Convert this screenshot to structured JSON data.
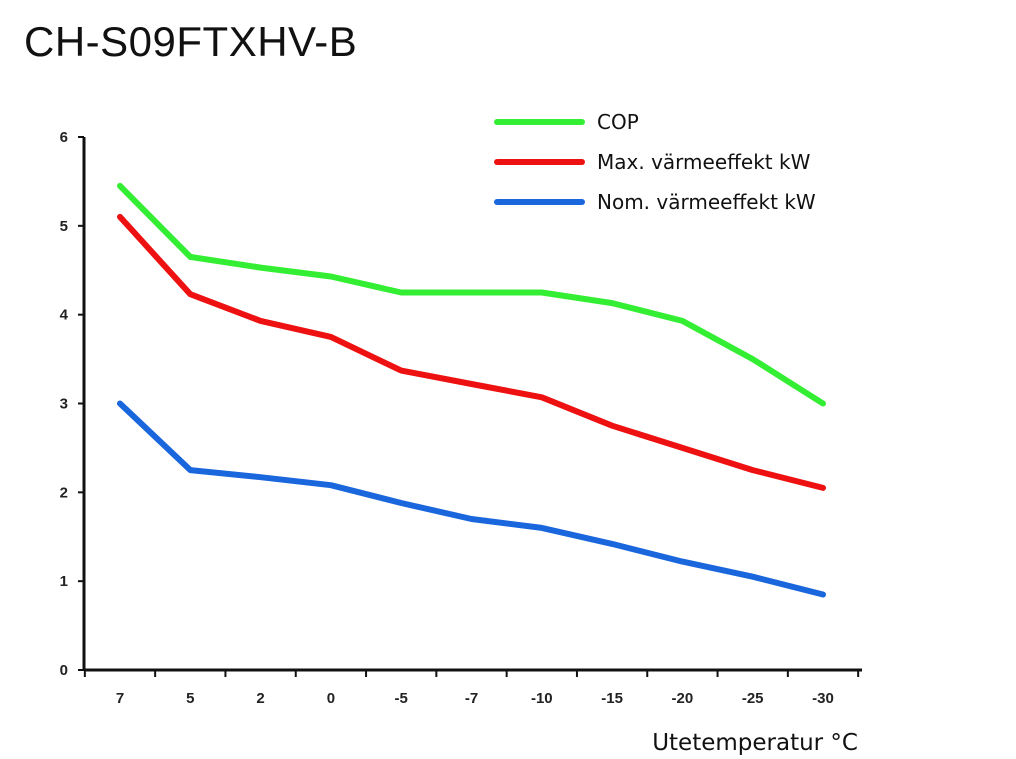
{
  "chart_data": {
    "type": "line",
    "title": "CH-S09FTXHV-B",
    "xlabel": "Utetemperatur °C",
    "ylabel": "",
    "categories": [
      "7",
      "5",
      "2",
      "0",
      "-5",
      "-7",
      "-10",
      "-15",
      "-20",
      "-25",
      "-30"
    ],
    "y_ticks": [
      "0",
      "1",
      "2",
      "3",
      "4",
      "5",
      "6"
    ],
    "ylim": [
      0,
      6
    ],
    "legend_position": "top-right",
    "series": [
      {
        "name": "COP",
        "color": "#33ee33",
        "values": [
          5.45,
          4.65,
          4.53,
          4.43,
          4.25,
          4.25,
          4.25,
          4.13,
          3.93,
          3.5,
          3.0
        ]
      },
      {
        "name": "Max. värmeeffekt kW",
        "color": "#ee1111",
        "values": [
          5.1,
          4.23,
          3.93,
          3.75,
          3.37,
          3.22,
          3.07,
          2.75,
          2.5,
          2.25,
          2.05
        ]
      },
      {
        "name": "Nom. värmeeffekt kW",
        "color": "#1a66dd",
        "values": [
          3.0,
          2.25,
          2.17,
          2.08,
          1.88,
          1.7,
          1.6,
          1.42,
          1.22,
          1.05,
          0.85
        ]
      }
    ]
  }
}
